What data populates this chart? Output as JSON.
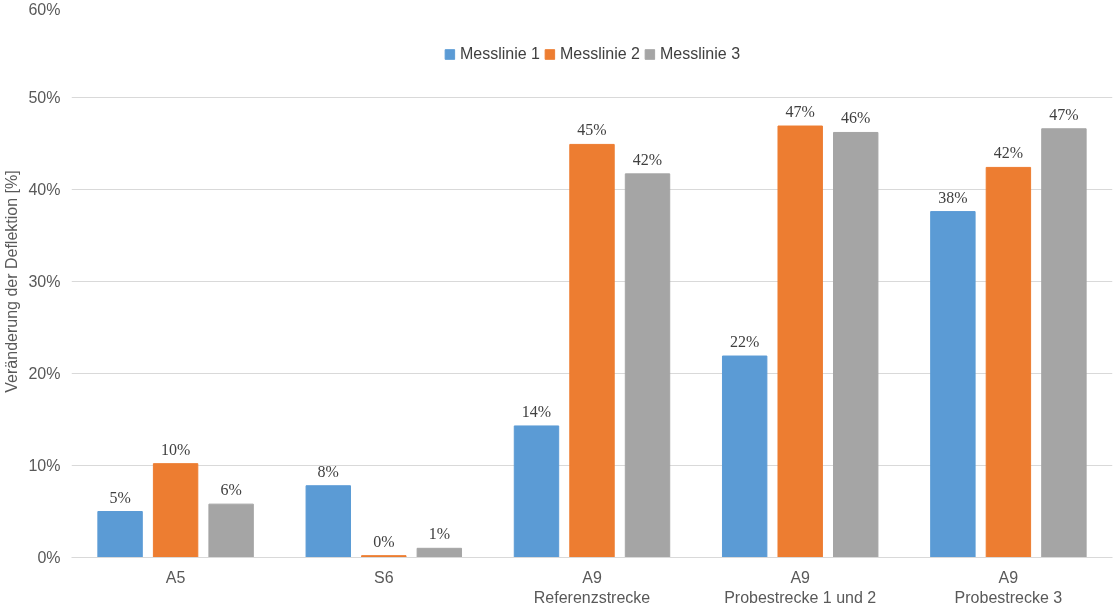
{
  "chart_data": {
    "type": "bar",
    "ylabel": "Veränderung der Deflektion [%]",
    "categories": [
      "A5",
      "S6",
      "A9\nReferenzstrecke",
      "A9\nProbestrecke 1 und 2",
      "A9\nProbestrecke 3"
    ],
    "series": [
      {
        "name": "Messlinie 1",
        "color": "#5b9bd5",
        "values": [
          5.0,
          7.8,
          14.3,
          21.9,
          37.6
        ],
        "value_labels": [
          "5%",
          "8%",
          "14%",
          "22%",
          "38%"
        ]
      },
      {
        "name": "Messlinie 2",
        "color": "#ed7d31",
        "values": [
          10.2,
          0.2,
          44.9,
          46.9,
          42.4
        ],
        "value_labels": [
          "10%",
          "0%",
          "45%",
          "47%",
          "42%"
        ]
      },
      {
        "name": "Messlinie 3",
        "color": "#a5a5a5",
        "values": [
          5.8,
          1.0,
          41.7,
          46.2,
          46.6
        ],
        "value_labels": [
          "6%",
          "1%",
          "42%",
          "46%",
          "47%"
        ]
      }
    ],
    "ylim": [
      0,
      60
    ],
    "yticks": [
      {
        "value": 0,
        "label": "0%"
      },
      {
        "value": 10,
        "label": "10%"
      },
      {
        "value": 20,
        "label": "20%"
      },
      {
        "value": 30,
        "label": "30%"
      },
      {
        "value": 40,
        "label": "40%"
      },
      {
        "value": 50,
        "label": "50%"
      },
      {
        "value": 60,
        "label": "60%"
      }
    ],
    "grid": "y",
    "legend": "top"
  }
}
